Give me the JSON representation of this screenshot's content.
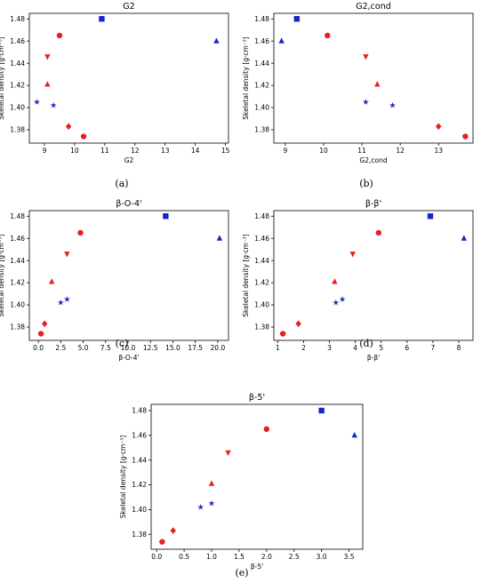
{
  "colors": {
    "red": "#e8201c",
    "blue": "#1426c8"
  },
  "charts": [
    {
      "id": "a",
      "subfig": "(a)",
      "chart_data": {
        "type": "scatter",
        "title": "G2",
        "xlabel": "G2",
        "ylabel": "Skeletal density [g·cm⁻³]",
        "xlim": [
          8.5,
          15.1
        ],
        "ylim": [
          1.368,
          1.485
        ],
        "xticks": [
          9,
          10,
          11,
          12,
          13,
          14,
          15
        ],
        "xtick_labels": [
          "9",
          "10",
          "11",
          "12",
          "13",
          "14",
          "15"
        ],
        "yticks": [
          1.38,
          1.4,
          1.42,
          1.44,
          1.46,
          1.48
        ],
        "ytick_labels": [
          "1.38",
          "1.40",
          "1.42",
          "1.44",
          "1.46",
          "1.48"
        ],
        "points": [
          {
            "x": 10.9,
            "y": 1.48,
            "marker": "square",
            "color": "blue"
          },
          {
            "x": 14.7,
            "y": 1.46,
            "marker": "triangle-up",
            "color": "blue"
          },
          {
            "x": 9.5,
            "y": 1.465,
            "marker": "circle",
            "color": "red"
          },
          {
            "x": 9.1,
            "y": 1.446,
            "marker": "triangle-down",
            "color": "red"
          },
          {
            "x": 9.1,
            "y": 1.421,
            "marker": "triangle-up",
            "color": "red"
          },
          {
            "x": 8.75,
            "y": 1.405,
            "marker": "star",
            "color": "blue"
          },
          {
            "x": 9.3,
            "y": 1.402,
            "marker": "star",
            "color": "blue"
          },
          {
            "x": 9.8,
            "y": 1.383,
            "marker": "diamond",
            "color": "red"
          },
          {
            "x": 10.3,
            "y": 1.374,
            "marker": "circle",
            "color": "red"
          }
        ]
      }
    },
    {
      "id": "b",
      "subfig": "(b)",
      "chart_data": {
        "type": "scatter",
        "title": "G2,cond",
        "xlabel": "G2,cond",
        "ylabel": "Skeletal density [g·cm⁻³]",
        "xlim": [
          8.7,
          13.9
        ],
        "ylim": [
          1.368,
          1.485
        ],
        "xticks": [
          9,
          10,
          11,
          12,
          13
        ],
        "xtick_labels": [
          "9",
          "10",
          "11",
          "12",
          "13"
        ],
        "yticks": [
          1.38,
          1.4,
          1.42,
          1.44,
          1.46,
          1.48
        ],
        "ytick_labels": [
          "1.38",
          "1.40",
          "1.42",
          "1.44",
          "1.46",
          "1.48"
        ],
        "points": [
          {
            "x": 9.3,
            "y": 1.48,
            "marker": "square",
            "color": "blue"
          },
          {
            "x": 8.9,
            "y": 1.46,
            "marker": "triangle-up",
            "color": "blue"
          },
          {
            "x": 10.1,
            "y": 1.465,
            "marker": "circle",
            "color": "red"
          },
          {
            "x": 11.1,
            "y": 1.446,
            "marker": "triangle-down",
            "color": "red"
          },
          {
            "x": 11.4,
            "y": 1.421,
            "marker": "triangle-up",
            "color": "red"
          },
          {
            "x": 11.1,
            "y": 1.405,
            "marker": "star",
            "color": "blue"
          },
          {
            "x": 11.8,
            "y": 1.402,
            "marker": "star",
            "color": "blue"
          },
          {
            "x": 13.0,
            "y": 1.383,
            "marker": "diamond",
            "color": "red"
          },
          {
            "x": 13.7,
            "y": 1.374,
            "marker": "circle",
            "color": "red"
          }
        ]
      }
    },
    {
      "id": "c",
      "subfig": "(c)",
      "chart_data": {
        "type": "scatter",
        "title": "β-O-4'",
        "xlabel": "β-O-4'",
        "ylabel": "Skeletal density [g·cm⁻³]",
        "xlim": [
          -1.0,
          21.2
        ],
        "ylim": [
          1.368,
          1.485
        ],
        "xticks": [
          0,
          2.5,
          5,
          7.5,
          10,
          12.5,
          15,
          17.5,
          20
        ],
        "xtick_labels": [
          "0.0",
          "2.5",
          "5.0",
          "7.5",
          "10.0",
          "12.5",
          "15.0",
          "17.5",
          "20.0"
        ],
        "yticks": [
          1.38,
          1.4,
          1.42,
          1.44,
          1.46,
          1.48
        ],
        "ytick_labels": [
          "1.38",
          "1.40",
          "1.42",
          "1.44",
          "1.46",
          "1.48"
        ],
        "points": [
          {
            "x": 14.2,
            "y": 1.48,
            "marker": "square",
            "color": "blue"
          },
          {
            "x": 20.2,
            "y": 1.46,
            "marker": "triangle-up",
            "color": "blue"
          },
          {
            "x": 4.7,
            "y": 1.465,
            "marker": "circle",
            "color": "red"
          },
          {
            "x": 3.2,
            "y": 1.446,
            "marker": "triangle-down",
            "color": "red"
          },
          {
            "x": 1.5,
            "y": 1.421,
            "marker": "triangle-up",
            "color": "red"
          },
          {
            "x": 3.2,
            "y": 1.405,
            "marker": "star",
            "color": "blue"
          },
          {
            "x": 2.5,
            "y": 1.402,
            "marker": "star",
            "color": "blue"
          },
          {
            "x": 0.7,
            "y": 1.383,
            "marker": "diamond",
            "color": "red"
          },
          {
            "x": 0.3,
            "y": 1.374,
            "marker": "circle",
            "color": "red"
          }
        ]
      }
    },
    {
      "id": "d",
      "subfig": "(d)",
      "chart_data": {
        "type": "scatter",
        "title": "β-β'",
        "xlabel": "β-β'",
        "ylabel": "Skeletal density [g·cm⁻³]",
        "xlim": [
          0.85,
          8.55
        ],
        "ylim": [
          1.368,
          1.485
        ],
        "xticks": [
          1,
          2,
          3,
          4,
          5,
          6,
          7,
          8
        ],
        "xtick_labels": [
          "1",
          "2",
          "3",
          "4",
          "5",
          "6",
          "7",
          "8"
        ],
        "yticks": [
          1.38,
          1.4,
          1.42,
          1.44,
          1.46,
          1.48
        ],
        "ytick_labels": [
          "1.38",
          "1.40",
          "1.42",
          "1.44",
          "1.46",
          "1.48"
        ],
        "points": [
          {
            "x": 6.9,
            "y": 1.48,
            "marker": "square",
            "color": "blue"
          },
          {
            "x": 8.2,
            "y": 1.46,
            "marker": "triangle-up",
            "color": "blue"
          },
          {
            "x": 4.9,
            "y": 1.465,
            "marker": "circle",
            "color": "red"
          },
          {
            "x": 3.9,
            "y": 1.446,
            "marker": "triangle-down",
            "color": "red"
          },
          {
            "x": 3.2,
            "y": 1.421,
            "marker": "triangle-up",
            "color": "red"
          },
          {
            "x": 3.5,
            "y": 1.405,
            "marker": "star",
            "color": "blue"
          },
          {
            "x": 3.25,
            "y": 1.402,
            "marker": "star",
            "color": "blue"
          },
          {
            "x": 1.8,
            "y": 1.383,
            "marker": "diamond",
            "color": "red"
          },
          {
            "x": 1.2,
            "y": 1.374,
            "marker": "circle",
            "color": "red"
          }
        ]
      }
    },
    {
      "id": "e",
      "subfig": "(e)",
      "chart_data": {
        "type": "scatter",
        "title": "β-5'",
        "xlabel": "β-5'",
        "ylabel": "Skeletal density [g·cm⁻³]",
        "xlim": [
          -0.1,
          3.75
        ],
        "ylim": [
          1.368,
          1.485
        ],
        "xticks": [
          0,
          0.5,
          1,
          1.5,
          2,
          2.5,
          3,
          3.5
        ],
        "xtick_labels": [
          "0.0",
          "0.5",
          "1.0",
          "1.5",
          "2.0",
          "2.5",
          "3.0",
          "3.5"
        ],
        "yticks": [
          1.38,
          1.4,
          1.42,
          1.44,
          1.46,
          1.48
        ],
        "ytick_labels": [
          "1.38",
          "1.40",
          "1.42",
          "1.44",
          "1.46",
          "1.48"
        ],
        "points": [
          {
            "x": 3.0,
            "y": 1.48,
            "marker": "square",
            "color": "blue"
          },
          {
            "x": 3.6,
            "y": 1.46,
            "marker": "triangle-up",
            "color": "blue"
          },
          {
            "x": 2.0,
            "y": 1.465,
            "marker": "circle",
            "color": "red"
          },
          {
            "x": 1.3,
            "y": 1.446,
            "marker": "triangle-down",
            "color": "red"
          },
          {
            "x": 1.0,
            "y": 1.421,
            "marker": "triangle-up",
            "color": "red"
          },
          {
            "x": 1.0,
            "y": 1.405,
            "marker": "star",
            "color": "blue"
          },
          {
            "x": 0.8,
            "y": 1.402,
            "marker": "star",
            "color": "blue"
          },
          {
            "x": 0.3,
            "y": 1.383,
            "marker": "diamond",
            "color": "red"
          },
          {
            "x": 0.1,
            "y": 1.374,
            "marker": "circle",
            "color": "red"
          }
        ]
      }
    }
  ]
}
